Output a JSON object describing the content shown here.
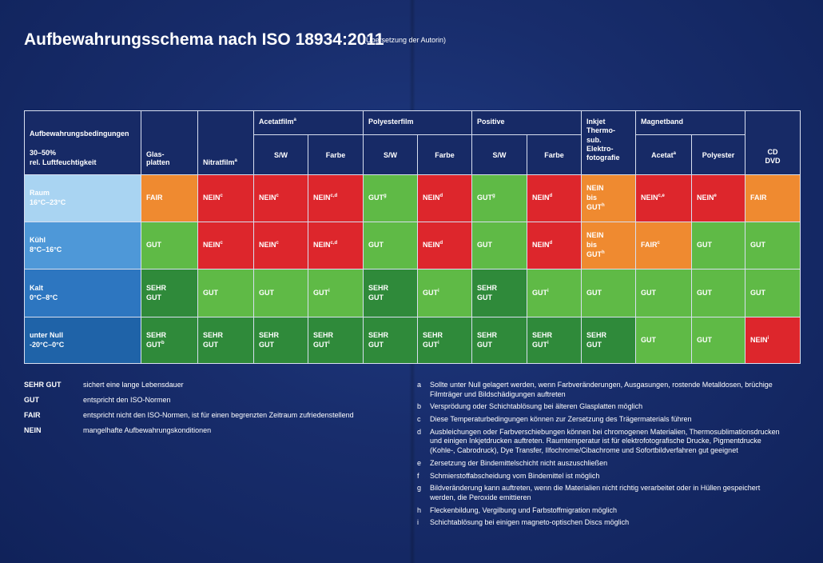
{
  "title": "Aufbewahrungsschema nach ISO 18934:2011",
  "subtitle": "(Übersetzung der Autorin)",
  "colors": {
    "SEHR GUT": "#2f8a3a",
    "GUT": "#5fba46",
    "FAIR": "#ef8a30",
    "NEIN": "#dd262c",
    "background": "#182d6c"
  },
  "table": {
    "header": {
      "conditions_title": "Aufbewahrungsbedingungen",
      "conditions_sub1": "30–50%",
      "conditions_sub2": "rel. Luftfeuchtigkeit",
      "glasplatten_1": "Glas-",
      "glasplatten_2": "platten",
      "nitratfilm": "Nitratfilm",
      "nitratfilm_sup": "a",
      "acetatfilm": "Acetatfilm",
      "acetatfilm_sup": "a",
      "polyesterfilm": "Polyesterfilm",
      "positive": "Positive",
      "inkjet_1": "Inkjet",
      "inkjet_2": "Thermo-",
      "inkjet_3": "sub.",
      "inkjet_4": "Elektro-",
      "inkjet_5": "fotografie",
      "magnetband": "Magnetband",
      "cd": "CD",
      "dvd": "DVD",
      "sw_1": "S/W",
      "farbe_1": "Farbe",
      "sw_2": "S/W",
      "farbe_2": "Farbe",
      "sw_3": "S/W",
      "farbe_3": "Farbe",
      "acetat": "Acetat",
      "acetat_sup": "a",
      "polyester": "Polyester"
    },
    "rows": [
      {
        "condition": "Raum",
        "temp": "16°C–23°C",
        "cells": [
          {
            "rating": "FAIR",
            "line1": "FAIR",
            "line2": "",
            "line3": "",
            "sup": ""
          },
          {
            "rating": "NEIN",
            "line1": "NEIN",
            "line2": "",
            "line3": "",
            "sup": "c"
          },
          {
            "rating": "NEIN",
            "line1": "NEIN",
            "line2": "",
            "line3": "",
            "sup": "c"
          },
          {
            "rating": "NEIN",
            "line1": "NEIN",
            "line2": "",
            "line3": "",
            "sup": "c,d"
          },
          {
            "rating": "GUT",
            "line1": "GUT",
            "line2": "",
            "line3": "",
            "sup": "g"
          },
          {
            "rating": "NEIN",
            "line1": "NEIN",
            "line2": "",
            "line3": "",
            "sup": "d"
          },
          {
            "rating": "GUT",
            "line1": "GUT",
            "line2": "",
            "line3": "",
            "sup": "g"
          },
          {
            "rating": "NEIN",
            "line1": "NEIN",
            "line2": "",
            "line3": "",
            "sup": "d"
          },
          {
            "rating": "FAIR",
            "line1": "NEIN",
            "line2": "bis",
            "line3": "GUT",
            "sup": "h"
          },
          {
            "rating": "NEIN",
            "line1": "NEIN",
            "line2": "",
            "line3": "",
            "sup": "c,e"
          },
          {
            "rating": "NEIN",
            "line1": "NEIN",
            "line2": "",
            "line3": "",
            "sup": "e"
          },
          {
            "rating": "FAIR",
            "line1": "FAIR",
            "line2": "",
            "line3": "",
            "sup": ""
          }
        ]
      },
      {
        "condition": "Kühl",
        "temp": "8°C–16°C",
        "cells": [
          {
            "rating": "GUT",
            "line1": "GUT",
            "line2": "",
            "line3": "",
            "sup": ""
          },
          {
            "rating": "NEIN",
            "line1": "NEIN",
            "line2": "",
            "line3": "",
            "sup": "c"
          },
          {
            "rating": "NEIN",
            "line1": "NEIN",
            "line2": "",
            "line3": "",
            "sup": "c"
          },
          {
            "rating": "NEIN",
            "line1": "NEIN",
            "line2": "",
            "line3": "",
            "sup": "c,d"
          },
          {
            "rating": "GUT",
            "line1": "GUT",
            "line2": "",
            "line3": "",
            "sup": ""
          },
          {
            "rating": "NEIN",
            "line1": "NEIN",
            "line2": "",
            "line3": "",
            "sup": "d"
          },
          {
            "rating": "GUT",
            "line1": "GUT",
            "line2": "",
            "line3": "",
            "sup": ""
          },
          {
            "rating": "NEIN",
            "line1": "NEIN",
            "line2": "",
            "line3": "",
            "sup": "d"
          },
          {
            "rating": "FAIR",
            "line1": "NEIN",
            "line2": "bis",
            "line3": "GUT",
            "sup": "h"
          },
          {
            "rating": "FAIR",
            "line1": "FAIR",
            "line2": "",
            "line3": "",
            "sup": "c"
          },
          {
            "rating": "GUT",
            "line1": "GUT",
            "line2": "",
            "line3": "",
            "sup": ""
          },
          {
            "rating": "GUT",
            "line1": "GUT",
            "line2": "",
            "line3": "",
            "sup": ""
          }
        ]
      },
      {
        "condition": "Kalt",
        "temp": "0°C–8°C",
        "cells": [
          {
            "rating": "SEHR GUT",
            "line1": "SEHR",
            "line2": "GUT",
            "line3": "",
            "sup": ""
          },
          {
            "rating": "GUT",
            "line1": "GUT",
            "line2": "",
            "line3": "",
            "sup": ""
          },
          {
            "rating": "GUT",
            "line1": "GUT",
            "line2": "",
            "line3": "",
            "sup": ""
          },
          {
            "rating": "GUT",
            "line1": "GUT",
            "line2": "",
            "line3": "",
            "sup": "i"
          },
          {
            "rating": "SEHR GUT",
            "line1": "SEHR",
            "line2": "GUT",
            "line3": "",
            "sup": ""
          },
          {
            "rating": "GUT",
            "line1": "GUT",
            "line2": "",
            "line3": "",
            "sup": "i"
          },
          {
            "rating": "SEHR GUT",
            "line1": "SEHR",
            "line2": "GUT",
            "line3": "",
            "sup": ""
          },
          {
            "rating": "GUT",
            "line1": "GUT",
            "line2": "",
            "line3": "",
            "sup": "i"
          },
          {
            "rating": "GUT",
            "line1": "GUT",
            "line2": "",
            "line3": "",
            "sup": ""
          },
          {
            "rating": "GUT",
            "line1": "GUT",
            "line2": "",
            "line3": "",
            "sup": ""
          },
          {
            "rating": "GUT",
            "line1": "GUT",
            "line2": "",
            "line3": "",
            "sup": ""
          },
          {
            "rating": "GUT",
            "line1": "GUT",
            "line2": "",
            "line3": "",
            "sup": ""
          }
        ]
      },
      {
        "condition": "unter Null",
        "temp": "-20°C–0°C",
        "cells": [
          {
            "rating": "SEHR GUT",
            "line1": "SEHR",
            "line2": "GUT",
            "line3": "",
            "sup": "b"
          },
          {
            "rating": "SEHR GUT",
            "line1": "SEHR",
            "line2": "GUT",
            "line3": "",
            "sup": ""
          },
          {
            "rating": "SEHR GUT",
            "line1": "SEHR",
            "line2": "GUT",
            "line3": "",
            "sup": ""
          },
          {
            "rating": "SEHR GUT",
            "line1": "SEHR",
            "line2": "GUT",
            "line3": "",
            "sup": "i"
          },
          {
            "rating": "SEHR GUT",
            "line1": "SEHR",
            "line2": "GUT",
            "line3": "",
            "sup": ""
          },
          {
            "rating": "SEHR GUT",
            "line1": "SEHR",
            "line2": "GUT",
            "line3": "",
            "sup": "i"
          },
          {
            "rating": "SEHR GUT",
            "line1": "SEHR",
            "line2": "GUT",
            "line3": "",
            "sup": ""
          },
          {
            "rating": "SEHR GUT",
            "line1": "SEHR",
            "line2": "GUT",
            "line3": "",
            "sup": "i"
          },
          {
            "rating": "SEHR GUT",
            "line1": "SEHR",
            "line2": "GUT",
            "line3": "",
            "sup": ""
          },
          {
            "rating": "GUT",
            "line1": "GUT",
            "line2": "",
            "line3": "",
            "sup": ""
          },
          {
            "rating": "GUT",
            "line1": "GUT",
            "line2": "",
            "line3": "",
            "sup": ""
          },
          {
            "rating": "NEIN",
            "line1": "NEIN",
            "line2": "",
            "line3": "",
            "sup": "i"
          }
        ]
      }
    ]
  },
  "legend": [
    {
      "key": "SEHR GUT",
      "text": "sichert eine lange Lebensdauer"
    },
    {
      "key": "GUT",
      "text": "entspricht den ISO-Normen"
    },
    {
      "key": "FAIR",
      "text": "entspricht nicht den ISO-Normen, ist für einen begrenzten Zeitraum zufriedenstellend"
    },
    {
      "key": "NEIN",
      "text": "mangelhafte Aufbewahrungskonditionen"
    }
  ],
  "footnotes": [
    {
      "key": "a",
      "text": "Sollte unter Null gelagert werden, wenn Farbveränderungen, Ausgasungen, rostende Metalldosen, brüchige Filmträger und Bildschädigungen auftreten"
    },
    {
      "key": "b",
      "text": "Versprödung oder Schichtablösung bei älteren Glasplatten möglich"
    },
    {
      "key": "c",
      "text": "Diese Temperaturbedingungen können zur Zersetzung des Trägermaterials führen"
    },
    {
      "key": "d",
      "text": "Ausbleichungen oder Farbverschiebungen können bei chromogenen Materialien, Thermosublimationsdrucken und einigen Inkjetdrucken auftreten. Raumtemperatur ist für elektrofotografische Drucke, Pigmentdrucke (Kohle-, Cabrodruck), Dye Transfer, Ilfochrome/Cibachrome und Sofortbildverfahren gut geeignet"
    },
    {
      "key": "e",
      "text": "Zersetzung der Bindemittelschicht nicht auszuschließen"
    },
    {
      "key": "f",
      "text": "Schmierstoffabscheidung vom Bindemittel ist möglich"
    },
    {
      "key": "g",
      "text": "Bildveränderung kann auftreten, wenn die Materialien nicht richtig verarbeitet oder in Hüllen gespeichert werden, die Peroxide emittieren"
    },
    {
      "key": "h",
      "text": "Fleckenbildung, Vergilbung und Farbstoffmigration möglich"
    },
    {
      "key": "i",
      "text": "Schichtablösung bei einigen magneto-optischen Discs möglich"
    }
  ]
}
